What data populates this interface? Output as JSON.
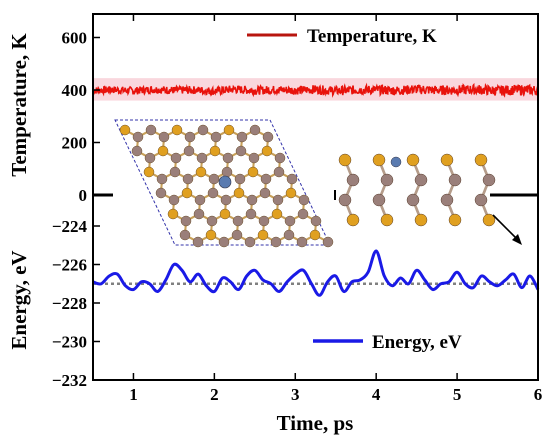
{
  "chart_data": {
    "type": "line",
    "xlabel": "Time, ps",
    "xlim": [
      0.5,
      6.0
    ],
    "xticks": [
      "1",
      "2",
      "3",
      "4",
      "5",
      "6"
    ],
    "panels": [
      {
        "name": "temperature",
        "ylabel": "Temperature, K",
        "ylim": [
          -30,
          680
        ],
        "yticks": [
          "600",
          "400",
          "200",
          "0"
        ],
        "legend": "Temperature, K",
        "legend_position": "top-right",
        "series": [
          {
            "name": "Temperature, K",
            "color": "#e8120c",
            "x": [
              0.5,
              0.75,
              1.0,
              1.25,
              1.5,
              1.75,
              2.0,
              2.25,
              2.5,
              2.75,
              3.0,
              3.25,
              3.5,
              3.75,
              4.0,
              4.25,
              4.5,
              4.75,
              5.0,
              5.25,
              5.5,
              5.75,
              6.0
            ],
            "y": [
              398,
              401,
              397,
              402,
              399,
              400,
              396,
              403,
              398,
              401,
              399,
              402,
              397,
              400,
              401,
              398,
              403,
              399,
              400,
              402,
              397,
              401,
              399
            ],
            "fluctuation_band": [
              375,
              430
            ]
          }
        ]
      },
      {
        "name": "energy",
        "ylabel": "Energy, eV",
        "ylim": [
          -232,
          -223
        ],
        "yticks": [
          "-224",
          "-226",
          "-228",
          "-230",
          "-232"
        ],
        "legend": "Energy, eV",
        "legend_position": "bottom-right",
        "series": [
          {
            "name": "Energy, eV",
            "color": "#1a1ae6",
            "x": [
              0.5,
              0.6,
              0.7,
              0.8,
              0.9,
              1.0,
              1.1,
              1.2,
              1.3,
              1.4,
              1.5,
              1.6,
              1.7,
              1.8,
              1.9,
              2.0,
              2.1,
              2.2,
              2.3,
              2.4,
              2.5,
              2.6,
              2.7,
              2.8,
              2.9,
              3.0,
              3.1,
              3.2,
              3.3,
              3.4,
              3.5,
              3.6,
              3.7,
              3.8,
              3.9,
              4.0,
              4.1,
              4.2,
              4.3,
              4.4,
              4.5,
              4.6,
              4.7,
              4.8,
              4.9,
              5.0,
              5.1,
              5.2,
              5.3,
              5.4,
              5.5,
              5.6,
              5.7,
              5.8,
              5.9,
              6.0
            ],
            "y": [
              -226.9,
              -227.0,
              -226.6,
              -226.5,
              -227.1,
              -227.3,
              -226.9,
              -227.0,
              -227.4,
              -226.8,
              -226.0,
              -226.3,
              -226.9,
              -226.5,
              -227.1,
              -227.4,
              -226.7,
              -226.9,
              -227.3,
              -226.6,
              -226.3,
              -226.8,
              -227.0,
              -227.4,
              -226.9,
              -226.5,
              -226.3,
              -227.0,
              -227.6,
              -226.9,
              -226.6,
              -227.4,
              -226.9,
              -226.8,
              -226.4,
              -225.3,
              -226.6,
              -227.1,
              -226.7,
              -227.0,
              -226.3,
              -226.8,
              -227.3,
              -227.0,
              -226.9,
              -226.4,
              -227.0,
              -227.2,
              -226.6,
              -226.9,
              -227.1,
              -226.8,
              -226.5,
              -227.2,
              -226.6,
              -227.3
            ]
          },
          {
            "name": "",
            "color": "#808080",
            "style": "dotted",
            "x": [
              0.5,
              6.0
            ],
            "y": [
              -227.0,
              -227.0
            ]
          }
        ]
      }
    ],
    "annotations": [
      "inset-structure-top-view",
      "inset-structure-side-view",
      "arrow"
    ]
  }
}
